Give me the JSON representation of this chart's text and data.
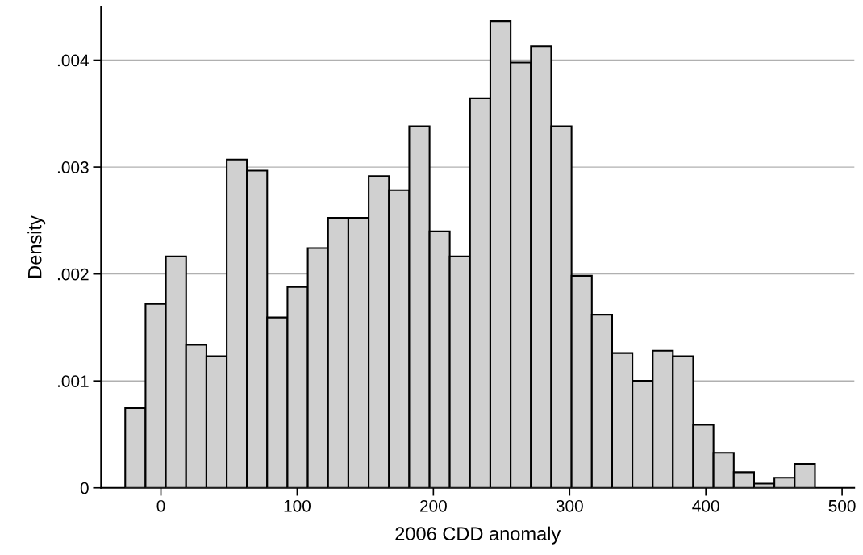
{
  "chart_data": {
    "type": "histogram",
    "xlabel": "2006 CDD anomaly",
    "ylabel": "Density",
    "bins": [
      -26.2,
      -11.3,
      3.6,
      18.5,
      33.4,
      48.3,
      63.1,
      78.0,
      92.9,
      107.8,
      122.7,
      137.6,
      152.5,
      167.4,
      182.3,
      197.2,
      212.0,
      226.9,
      241.8,
      256.7,
      271.6,
      286.5,
      301.4,
      316.3,
      331.2,
      346.1,
      361.0,
      375.8,
      390.7,
      405.6,
      420.5,
      435.4,
      450.3,
      465.2,
      480.1
    ],
    "values": [
      0.000745,
      0.00172,
      0.002165,
      0.001337,
      0.001232,
      0.00307,
      0.002967,
      0.001593,
      0.001878,
      0.002243,
      0.002526,
      0.002526,
      0.002916,
      0.002784,
      0.003381,
      0.002399,
      0.002165,
      0.003643,
      0.004365,
      0.003977,
      0.00413,
      0.003381,
      0.001983,
      0.001619,
      0.001261,
      0.001001,
      0.001283,
      0.001232,
      0.00059,
      0.000328,
      0.000146,
      4e-05,
      9.4e-05,
      0.000224
    ],
    "color": "#d0d0d0",
    "xlim": [
      -44,
      509
    ],
    "ylim": [
      0,
      0.0045
    ],
    "xticks": [
      0,
      100,
      200,
      300,
      400,
      500
    ],
    "yticks": [
      {
        "value": 0,
        "label": "0"
      },
      {
        "value": 0.001,
        "label": ".001"
      },
      {
        "value": 0.002,
        "label": ".002"
      },
      {
        "value": 0.003,
        "label": ".003"
      },
      {
        "value": 0.004,
        "label": ".004"
      }
    ],
    "grid": "y"
  }
}
